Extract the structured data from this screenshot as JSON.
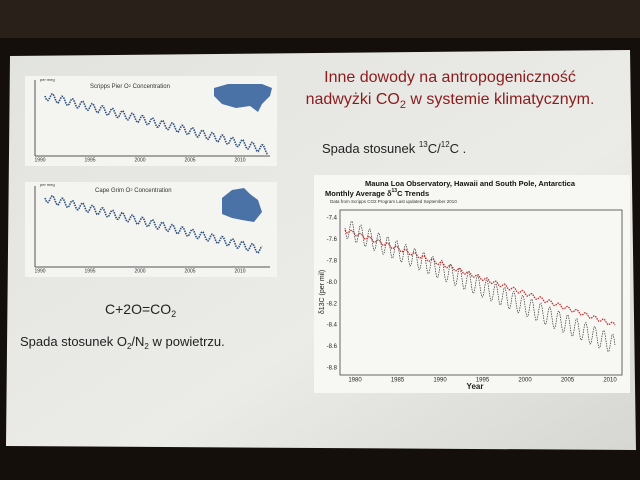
{
  "slide": {
    "title": {
      "line1": "Inne dowody na antropogeniczność",
      "line2a": "nadwyżki CO",
      "line2sub": "2",
      "line2b": " w systemie klimatycznym."
    },
    "carbon_note": {
      "a": "Spada stosunek ",
      "sup1": "13",
      "b": "C/",
      "sup2": "12",
      "c": "C ."
    },
    "equation": {
      "a": "C+2O=CO",
      "sub": "2"
    },
    "oxygen_note": {
      "a": "Spada stosunek  O",
      "sub1": "2",
      "b": "/N",
      "sub2": "2",
      "c": " w powietrzu."
    },
    "chart1": {
      "title": "Scripps Pier O",
      "title_sub": "2",
      "title_end": " Concentration",
      "unit": "per meg",
      "xticks": [
        "1990",
        "1995",
        "2000",
        "2005",
        "2010"
      ]
    },
    "chart2": {
      "title": "Cape Grim O",
      "title_sub": "2",
      "title_end": " Concentration",
      "unit": "per meg",
      "xticks": [
        "1990",
        "1995",
        "2000",
        "2005",
        "2010"
      ]
    },
    "chart3": {
      "title": "Mauna Loa Observatory, Hawaii and South Pole, Antarctica",
      "subtitle_a": "Monthly Average δ",
      "subtitle_sup": "13",
      "subtitle_b": "C Trends",
      "source": "Data from Scripps CO2 Program    Last updated September 2010",
      "ylabel": "δ13C (per mil)",
      "xlabel": "Year",
      "yticks": [
        "-7.4",
        "-7.6",
        "-7.8",
        "-8.0",
        "-8.2",
        "-8.4",
        "-8.6",
        "-8.8"
      ],
      "xticks": [
        "1980",
        "1985",
        "1990",
        "1995",
        "2000",
        "2005",
        "2010"
      ]
    }
  }
}
